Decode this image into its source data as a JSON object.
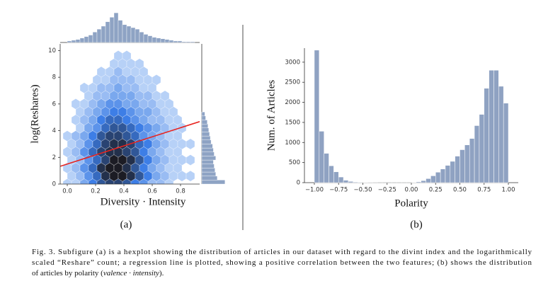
{
  "chart_data": [
    {
      "type": "hexbin",
      "panel": "(a)",
      "xlabel": "Diversity · Intensity",
      "ylabel": "log(Reshares)",
      "xlim": [
        -0.05,
        0.935
      ],
      "ylim": [
        0,
        10.5
      ],
      "xticks": [
        {
          "value": 0,
          "label": "0.0"
        },
        {
          "value": 0.2,
          "label": "0.2"
        },
        {
          "value": 0.4,
          "label": "0.4"
        },
        {
          "value": 0.6,
          "label": "0.6"
        },
        {
          "value": 0.8,
          "label": "0.8"
        }
      ],
      "yticks": [
        0,
        2,
        4,
        6,
        8,
        10
      ],
      "cmap": [
        "#d6e6fb",
        "#3d7ee6",
        "#1c1c24"
      ],
      "hex_x": [
        [
          0,
          0.06,
          0.12,
          0.18,
          0.24,
          0.3,
          0.36,
          0.42,
          0.48,
          0.54,
          0.6,
          0.66,
          0.72,
          0.78,
          0.84
        ],
        [
          0.03,
          0.09,
          0.15,
          0.21,
          0.27,
          0.33,
          0.39,
          0.45,
          0.51,
          0.57,
          0.63,
          0.69,
          0.75,
          0.81,
          0.87
        ]
      ],
      "hex_y": [
        9.6,
        9.0,
        8.4,
        7.8,
        7.2,
        6.6,
        6.0,
        5.4,
        4.8,
        4.2,
        3.6,
        3.0,
        2.4,
        1.8,
        1.2,
        0.6,
        0.0
      ],
      "density": [
        [
          null,
          null,
          null,
          null,
          null,
          null,
          1,
          1,
          null,
          null,
          null,
          null,
          null,
          null,
          null
        ],
        [
          null,
          null,
          null,
          null,
          null,
          1,
          1,
          1,
          1,
          null,
          null,
          null,
          null,
          null,
          null
        ],
        [
          null,
          null,
          null,
          null,
          1,
          1,
          2,
          1,
          1,
          1,
          null,
          null,
          null,
          null,
          null
        ],
        [
          null,
          null,
          null,
          1,
          1,
          2,
          2,
          2,
          1,
          1,
          1,
          null,
          null,
          null,
          null
        ],
        [
          null,
          null,
          1,
          1,
          2,
          2,
          3,
          2,
          2,
          1,
          1,
          null,
          null,
          null,
          null
        ],
        [
          null,
          null,
          1,
          2,
          2,
          3,
          3,
          3,
          2,
          2,
          1,
          1,
          null,
          null,
          null
        ],
        [
          null,
          1,
          1,
          2,
          3,
          4,
          4,
          3,
          3,
          2,
          2,
          1,
          1,
          null,
          null
        ],
        [
          null,
          1,
          2,
          3,
          4,
          5,
          5,
          4,
          3,
          3,
          2,
          1,
          1,
          null,
          null
        ],
        [
          null,
          1,
          2,
          3,
          5,
          6,
          6,
          5,
          4,
          3,
          2,
          2,
          1,
          1,
          null
        ],
        [
          null,
          1,
          3,
          4,
          6,
          7,
          7,
          6,
          5,
          4,
          3,
          2,
          1,
          1,
          null
        ],
        [
          1,
          2,
          3,
          5,
          7,
          8,
          8,
          7,
          6,
          4,
          3,
          2,
          1,
          1,
          null
        ],
        [
          1,
          2,
          4,
          6,
          8,
          9,
          9,
          8,
          6,
          5,
          3,
          2,
          1,
          1,
          1
        ],
        [
          1,
          2,
          4,
          6,
          8,
          9,
          9,
          8,
          7,
          5,
          3,
          2,
          1,
          1,
          null
        ],
        [
          1,
          2,
          4,
          6,
          8,
          10,
          10,
          9,
          7,
          5,
          3,
          2,
          1,
          1,
          1
        ],
        [
          1,
          2,
          4,
          6,
          9,
          10,
          10,
          9,
          7,
          5,
          3,
          2,
          1,
          1,
          null
        ],
        [
          1,
          2,
          4,
          6,
          9,
          10,
          10,
          9,
          7,
          5,
          3,
          2,
          1,
          1,
          1
        ],
        [
          1,
          1,
          3,
          5,
          7,
          8,
          8,
          7,
          5,
          4,
          2,
          2,
          1,
          null,
          null
        ]
      ],
      "regression": {
        "x": [
          -0.05,
          0.935
        ],
        "y": [
          1.33,
          4.68
        ],
        "color": "#e8231e"
      },
      "marginal_x": {
        "color": "#8ea3c4",
        "lim": [
          0,
          42
        ],
        "bins": [
          0,
          0.03,
          0.06,
          0.09,
          0.12,
          0.15,
          0.18,
          0.21,
          0.24,
          0.27,
          0.3,
          0.33,
          0.36,
          0.39,
          0.42,
          0.45,
          0.48,
          0.51,
          0.54,
          0.57,
          0.6,
          0.63,
          0.66,
          0.69,
          0.72,
          0.75,
          0.78,
          0.81,
          0.84,
          0.87,
          0.9
        ],
        "counts": [
          2,
          3,
          4,
          6,
          8,
          10,
          14,
          18,
          22,
          28,
          34,
          40,
          30,
          24,
          22,
          20,
          18,
          14,
          11,
          9,
          7,
          6,
          5,
          4,
          3,
          2,
          2,
          1,
          1,
          1
        ]
      },
      "marginal_y": {
        "color": "#8ea3c4",
        "lim": [
          0,
          32
        ],
        "bins": [
          0,
          0.3,
          0.6,
          0.9,
          1.2,
          1.5,
          1.8,
          2.1,
          2.4,
          2.7,
          3.0,
          3.3,
          3.6,
          3.9,
          4.2,
          4.5,
          4.8,
          5.1,
          5.4
        ],
        "counts": [
          30,
          20,
          18,
          17,
          16,
          15,
          18,
          16,
          15,
          14,
          12,
          11,
          10,
          9,
          8,
          7,
          5,
          4
        ]
      }
    },
    {
      "type": "histogram",
      "panel": "(b)",
      "xlabel": "Polarity",
      "ylabel": "Num. of Articles",
      "color": "#8fa2c2",
      "xlim": [
        -1.102,
        1.102
      ],
      "ylim": [
        0,
        3350
      ],
      "xticks": [
        {
          "value": -1,
          "label": "−1.00"
        },
        {
          "value": -0.75,
          "label": "−0.75"
        },
        {
          "value": -0.5,
          "label": "−0.50"
        },
        {
          "value": -0.25,
          "label": "−0.25"
        },
        {
          "value": 0,
          "label": "0.00"
        },
        {
          "value": 0.25,
          "label": "0.25"
        },
        {
          "value": 0.5,
          "label": "0.50"
        },
        {
          "value": 0.75,
          "label": "0.75"
        },
        {
          "value": 1,
          "label": "1.00"
        }
      ],
      "yticks": [
        0,
        500,
        1000,
        1500,
        2000,
        2500,
        3000
      ],
      "bins": [
        -1,
        -0.95,
        -0.9,
        -0.85,
        -0.8,
        -0.75,
        -0.7,
        -0.65,
        -0.6,
        -0.55,
        -0.5,
        -0.45,
        -0.4,
        -0.35,
        -0.3,
        -0.25,
        -0.2,
        -0.15,
        -0.1,
        -0.05,
        0,
        0.05,
        0.1,
        0.15,
        0.2,
        0.25,
        0.3,
        0.35,
        0.4,
        0.45,
        0.5,
        0.55,
        0.6,
        0.65,
        0.7,
        0.75,
        0.8,
        0.85,
        0.9,
        0.95,
        1
      ],
      "counts": [
        3300,
        1280,
        730,
        420,
        270,
        140,
        60,
        30,
        15,
        10,
        5,
        3,
        2,
        1,
        1,
        1,
        1,
        1,
        1,
        1,
        5,
        20,
        50,
        100,
        170,
        260,
        340,
        430,
        530,
        660,
        820,
        940,
        1100,
        1420,
        1700,
        2350,
        2800,
        2800,
        2400,
        1980
      ]
    }
  ],
  "caption": {
    "lines": [
      "Fig. 3.  Subfigure (a) is a hexplot showing the distribution of articles in our dataset with regard to the divint index and the logarithmically",
      "scaled “Reshare” count; a regression line is plotted, showing a positive correlation between the two features; (b) shows the distribution"
    ],
    "last": [
      "of articles by polarity (",
      "valence · intensity",
      ")."
    ]
  }
}
